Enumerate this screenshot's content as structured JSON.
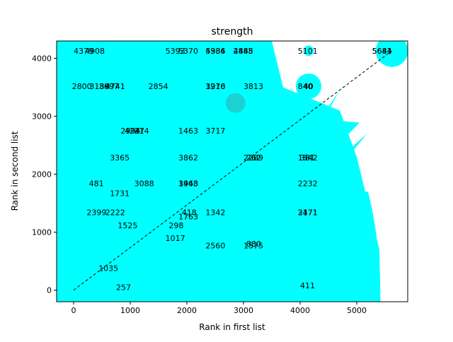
{
  "chart_data": {
    "type": "scatter",
    "title": "strength",
    "xlabel": "Rank in first list",
    "ylabel": "Rank in second list",
    "xlim": [
      -300,
      5900
    ],
    "ylim": [
      -200,
      4300
    ],
    "xticks": [
      0,
      1000,
      2000,
      3000,
      4000,
      5000
    ],
    "yticks": [
      0,
      1000,
      2000,
      3000,
      4000
    ],
    "grid": false,
    "legend": "none",
    "marker_color": "#00ffff",
    "diagonal": {
      "from": [
        0,
        0
      ],
      "to": [
        5620,
        4130
      ],
      "style": "dashed",
      "color": "#000000"
    },
    "bubbles": [
      {
        "x": 5620,
        "y": 4130,
        "r": 0.95
      },
      {
        "x": 4150,
        "y": 3520,
        "r": 0.75
      },
      {
        "x": 3220,
        "y": 4050,
        "r": 0.85
      },
      {
        "x": 2860,
        "y": 3520,
        "r": 0.55
      },
      {
        "x": 3220,
        "y": 3520,
        "r": 0.4
      },
      {
        "x": 4150,
        "y": 4130,
        "r": 0.3
      }
    ],
    "points": [
      {
        "label": "4379",
        "x": 0,
        "y": 4130
      },
      {
        "label": "4908",
        "x": 200,
        "y": 4130
      },
      {
        "label": "5393",
        "x": 1620,
        "y": 4130
      },
      {
        "label": "5370",
        "x": 1850,
        "y": 4130
      },
      {
        "label": "4986",
        "x": 2330,
        "y": 4130
      },
      {
        "label": "5384",
        "x": 2330,
        "y": 4130
      },
      {
        "label": "2448",
        "x": 2820,
        "y": 4130
      },
      {
        "label": "4885",
        "x": 2820,
        "y": 4130
      },
      {
        "label": "5101",
        "x": 3960,
        "y": 4130
      },
      {
        "label": "5644",
        "x": 5270,
        "y": 4130
      },
      {
        "label": "5681",
        "x": 5270,
        "y": 4130
      },
      {
        "label": "2800",
        "x": -30,
        "y": 3520
      },
      {
        "label": "3189",
        "x": 280,
        "y": 3520
      },
      {
        "label": "3697",
        "x": 450,
        "y": 3520
      },
      {
        "label": "4741",
        "x": 560,
        "y": 3520
      },
      {
        "label": "2854",
        "x": 1320,
        "y": 3520
      },
      {
        "label": "3916",
        "x": 2330,
        "y": 3520
      },
      {
        "label": "1270",
        "x": 2330,
        "y": 3520
      },
      {
        "label": "3813",
        "x": 3000,
        "y": 3520
      },
      {
        "label": "840",
        "x": 3960,
        "y": 3520
      },
      {
        "label": "40",
        "x": 4060,
        "y": 3520
      },
      {
        "label": "2994",
        "x": 830,
        "y": 2750
      },
      {
        "label": "4247",
        "x": 900,
        "y": 2750
      },
      {
        "label": "214",
        "x": 1070,
        "y": 2750
      },
      {
        "label": "1463",
        "x": 1850,
        "y": 2750
      },
      {
        "label": "3717",
        "x": 2330,
        "y": 2750
      },
      {
        "label": "3365",
        "x": 640,
        "y": 2290
      },
      {
        "label": "3862",
        "x": 1850,
        "y": 2290
      },
      {
        "label": "2289",
        "x": 3000,
        "y": 2290
      },
      {
        "label": "262",
        "x": 3050,
        "y": 2290
      },
      {
        "label": "1842",
        "x": 3960,
        "y": 2290
      },
      {
        "label": "381",
        "x": 4000,
        "y": 2290
      },
      {
        "label": "481",
        "x": 270,
        "y": 1840
      },
      {
        "label": "3088",
        "x": 1070,
        "y": 1840
      },
      {
        "label": "1968",
        "x": 1850,
        "y": 1840
      },
      {
        "label": "3443",
        "x": 1850,
        "y": 1840
      },
      {
        "label": "2232",
        "x": 3960,
        "y": 1840
      },
      {
        "label": "1731",
        "x": 640,
        "y": 1670
      },
      {
        "label": "2399",
        "x": 230,
        "y": 1340
      },
      {
        "label": "2222",
        "x": 560,
        "y": 1340
      },
      {
        "label": "418",
        "x": 1910,
        "y": 1340
      },
      {
        "label": "1342",
        "x": 2330,
        "y": 1340
      },
      {
        "label": "3471",
        "x": 3960,
        "y": 1340
      },
      {
        "label": "2171",
        "x": 3960,
        "y": 1340
      },
      {
        "label": "1763",
        "x": 1850,
        "y": 1270
      },
      {
        "label": "1525",
        "x": 780,
        "y": 1120
      },
      {
        "label": "298",
        "x": 1680,
        "y": 1120
      },
      {
        "label": "1017",
        "x": 1620,
        "y": 900
      },
      {
        "label": "2560",
        "x": 2330,
        "y": 770
      },
      {
        "label": "880",
        "x": 3050,
        "y": 800
      },
      {
        "label": "1575",
        "x": 3000,
        "y": 770
      },
      {
        "label": "1035",
        "x": 440,
        "y": 380
      },
      {
        "label": "257",
        "x": 750,
        "y": 50
      },
      {
        "label": "411",
        "x": 4000,
        "y": 80
      }
    ]
  }
}
